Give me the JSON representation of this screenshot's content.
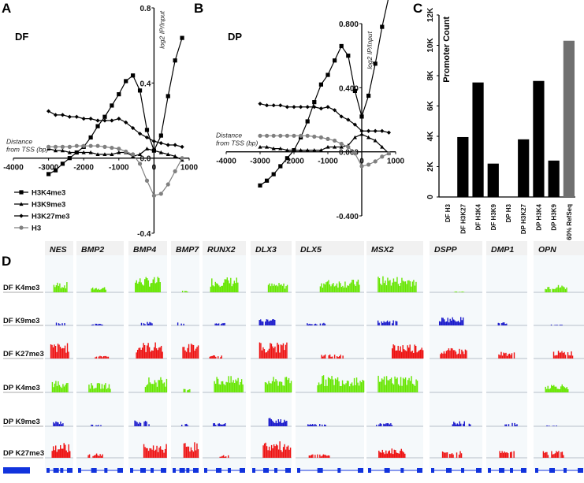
{
  "panels": {
    "A": "A",
    "B": "B",
    "C": "C",
    "D": "D"
  },
  "chart_data": [
    {
      "id": "A",
      "type": "line",
      "title": "DF",
      "xlabel": "Distance from TSS (bp)",
      "ylabel": "log2 IP/Input",
      "xlim": [
        -4000,
        1000
      ],
      "ylim": [
        -0.4,
        0.8
      ],
      "xticks": [
        "-4000",
        "-3000",
        "-2000",
        "-1000",
        "0",
        "1000"
      ],
      "yticks": [
        "0.8",
        "0.4",
        "0.0",
        "-0.4"
      ],
      "x": [
        -3000,
        -2800,
        -2600,
        -2400,
        -2200,
        -2000,
        -1800,
        -1600,
        -1400,
        -1200,
        -1000,
        -800,
        -600,
        -400,
        -200,
        0,
        200,
        400,
        600,
        800
      ],
      "series": [
        {
          "name": "H3K4me3",
          "marker": "square",
          "color": "#000000",
          "values": [
            -0.085,
            -0.065,
            -0.03,
            0.0,
            0.03,
            0.06,
            0.11,
            0.17,
            0.22,
            0.28,
            0.34,
            0.41,
            0.44,
            0.36,
            0.15,
            0.04,
            0.12,
            0.33,
            0.52,
            0.64
          ]
        },
        {
          "name": "H3K9me3",
          "marker": "triangle",
          "color": "#000000",
          "values": [
            0.05,
            0.04,
            0.04,
            0.03,
            0.03,
            0.03,
            0.03,
            0.02,
            0.02,
            0.02,
            0.03,
            0.03,
            0.01,
            0.02,
            0.05,
            0.04,
            0.03,
            0.02,
            0.01,
            -0.01
          ]
        },
        {
          "name": "H3K27me3",
          "marker": "diamond",
          "color": "#000000",
          "values": [
            0.25,
            0.23,
            0.23,
            0.22,
            0.22,
            0.21,
            0.21,
            0.2,
            0.2,
            0.2,
            0.21,
            0.19,
            0.16,
            0.13,
            0.11,
            0.09,
            0.08,
            0.07,
            0.07,
            0.06
          ]
        },
        {
          "name": "H3",
          "marker": "circle",
          "color": "#808080",
          "values": [
            0.06,
            0.06,
            0.06,
            0.06,
            0.065,
            0.065,
            0.065,
            0.065,
            0.06,
            0.055,
            0.05,
            0.035,
            0.02,
            -0.03,
            -0.12,
            -0.2,
            -0.19,
            -0.14,
            -0.07,
            0.0
          ]
        }
      ],
      "legend": "bottom-left"
    },
    {
      "id": "B",
      "type": "line",
      "title": "DP",
      "xlabel": "Distance from TSS (bp)",
      "ylabel": "log2 IP/Input",
      "xlim": [
        -4000,
        1000
      ],
      "ylim": [
        -0.4,
        0.8
      ],
      "xticks": [
        "-4000",
        "-3000",
        "-2000",
        "-1000",
        "0",
        "1000"
      ],
      "yticks": [
        "0.800",
        "0.400",
        "0.000",
        "-0.400"
      ],
      "x": [
        -3000,
        -2800,
        -2600,
        -2400,
        -2200,
        -2000,
        -1800,
        -1600,
        -1400,
        -1200,
        -1000,
        -800,
        -600,
        -400,
        -200,
        0,
        200,
        400,
        600,
        800
      ],
      "series": [
        {
          "name": "H3K4me3",
          "marker": "square",
          "color": "#000000",
          "values": [
            -0.21,
            -0.18,
            -0.14,
            -0.09,
            -0.04,
            0.01,
            0.09,
            0.19,
            0.31,
            0.42,
            0.48,
            0.57,
            0.66,
            0.6,
            0.38,
            0.22,
            0.35,
            0.55,
            0.78,
            0.97
          ]
        },
        {
          "name": "H3K9me3",
          "marker": "triangle",
          "color": "#000000",
          "values": [
            0.03,
            0.03,
            0.02,
            0.02,
            0.01,
            0.01,
            0.01,
            0.01,
            0.01,
            0.01,
            0.03,
            0.03,
            0.03,
            0.04,
            0.09,
            0.11,
            0.09,
            0.07,
            0.03,
            -0.01
          ]
        },
        {
          "name": "H3K27me3",
          "marker": "diamond",
          "color": "#000000",
          "values": [
            0.3,
            0.29,
            0.29,
            0.29,
            0.28,
            0.28,
            0.28,
            0.28,
            0.28,
            0.27,
            0.28,
            0.26,
            0.22,
            0.2,
            0.17,
            0.13,
            0.13,
            0.13,
            0.13,
            0.12
          ]
        },
        {
          "name": "H3",
          "marker": "circle",
          "color": "#808080",
          "values": [
            0.1,
            0.1,
            0.1,
            0.1,
            0.1,
            0.1,
            0.1,
            0.1,
            0.095,
            0.09,
            0.08,
            0.07,
            0.05,
            0.03,
            -0.01,
            -0.09,
            -0.08,
            -0.06,
            -0.03,
            -0.01
          ]
        }
      ]
    },
    {
      "id": "C",
      "type": "bar",
      "ylabel": "Promoter Count",
      "ylim": [
        0,
        12000
      ],
      "yticks": [
        "0",
        "2K",
        "4K",
        "6K",
        "8K",
        "10K",
        "12K"
      ],
      "categories": [
        "DF H3",
        "DF H3K27",
        "DF H3K4",
        "DF H3K9",
        "DP H3",
        "DP H3K27",
        "DP H3K4",
        "DP H3K9",
        "60% RefSeq"
      ],
      "values": [
        0,
        3950,
        7550,
        2200,
        0,
        3800,
        7650,
        2400,
        10300
      ],
      "colors": [
        "#000000",
        "#000000",
        "#000000",
        "#000000",
        "#000000",
        "#000000",
        "#000000",
        "#000000",
        "#707070"
      ]
    },
    {
      "id": "D",
      "type": "heatmap",
      "genes": [
        "NES",
        "BMP2",
        "BMP4",
        "BMP7",
        "RUNX2",
        "DLX3",
        "DLX5",
        "MSX2",
        "DSPP",
        "DMP1",
        "OPN"
      ],
      "tracks": [
        {
          "name": "DF K4me3",
          "color": "#66e600",
          "levels": [
            0.6,
            0.35,
            0.9,
            0.1,
            0.9,
            0.55,
            0.75,
            0.95,
            0.05,
            0.0,
            0.45
          ]
        },
        {
          "name": "DF K9me3",
          "color": "#1a1acc",
          "levels": [
            0.2,
            0.1,
            0.2,
            0.2,
            0.15,
            0.4,
            0.15,
            0.3,
            0.5,
            0.2,
            0.05
          ]
        },
        {
          "name": "DF K27me3",
          "color": "#ee1111",
          "levels": [
            0.9,
            0.2,
            0.95,
            0.9,
            0.2,
            0.95,
            0.25,
            0.9,
            0.6,
            0.4,
            0.45
          ]
        },
        {
          "name": "DP K4me3",
          "color": "#66e600",
          "levels": [
            0.7,
            0.55,
            0.9,
            0.2,
            0.95,
            0.9,
            1.0,
            1.0,
            0.0,
            0.0,
            0.5
          ]
        },
        {
          "name": "DP K9me3",
          "color": "#1a1acc",
          "levels": [
            0.3,
            0.1,
            0.35,
            0.15,
            0.2,
            0.5,
            0.15,
            0.2,
            0.3,
            0.2,
            0.05
          ]
        },
        {
          "name": "DP K27me3",
          "color": "#ee1111",
          "levels": [
            0.9,
            0.25,
            0.8,
            0.95,
            0.15,
            0.95,
            0.2,
            0.55,
            0.4,
            0.4,
            0.4
          ]
        }
      ]
    }
  ]
}
